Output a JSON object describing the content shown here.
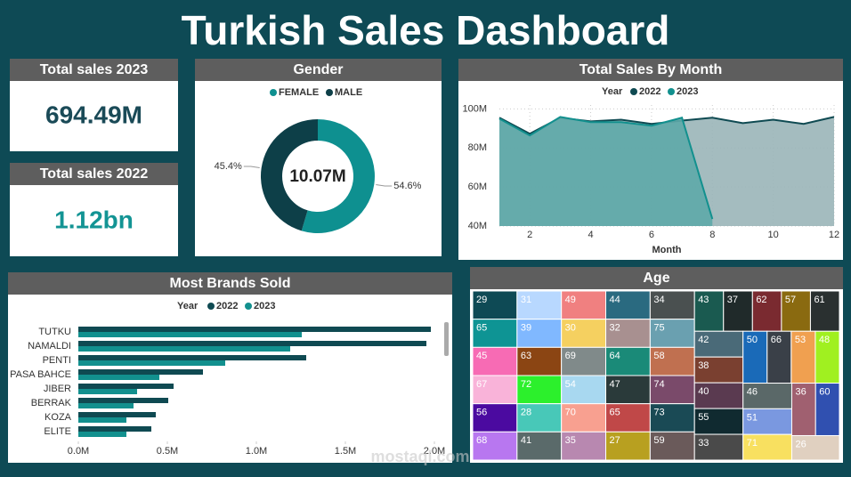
{
  "title": "Turkish Sales Dashboard",
  "cards": [
    {
      "title": "Total sales 2023",
      "value": "694.49M"
    },
    {
      "title": "Total sales 2022",
      "value": "1.12bn"
    }
  ],
  "watermark": "mostaql.com",
  "chart_data": [
    {
      "type": "donut",
      "title": "Gender",
      "categories": [
        "FEMALE",
        "MALE"
      ],
      "values": [
        54.6,
        45.4
      ],
      "value_labels": [
        "54.6%",
        "45.4%"
      ],
      "colors": [
        "#0e9090",
        "#0d3f48"
      ],
      "center_label": "10.07M",
      "legend": "top"
    },
    {
      "type": "area",
      "title": "Total Sales By Month",
      "legend_title": "Year",
      "x_label": "Month",
      "x": [
        1,
        2,
        3,
        4,
        5,
        6,
        7,
        8,
        9,
        10,
        11,
        12
      ],
      "series": [
        {
          "name": "2022",
          "color": "#0f4a52",
          "fill": "#9ab5b8",
          "values": [
            95.5,
            87.3,
            95.5,
            93.6,
            94.5,
            92.3,
            94,
            95.5,
            92.7,
            94.5,
            92.3,
            95.9
          ]
        },
        {
          "name": "2023",
          "color": "#12908e",
          "fill": "#5ea9a9",
          "values": [
            95,
            86.4,
            95.9,
            93.2,
            93.2,
            91.4,
            95.5,
            43.6,
            null,
            null,
            null,
            null
          ]
        }
      ],
      "xlim": [
        1,
        12
      ],
      "xticks": [
        2,
        4,
        6,
        8,
        10,
        12
      ],
      "ylim": [
        40,
        102
      ],
      "yticks": [
        {
          "value": 40,
          "label": "40M"
        },
        {
          "value": 60,
          "label": "60M"
        },
        {
          "value": 80,
          "label": "80M"
        },
        {
          "value": 100,
          "label": "100M"
        }
      ],
      "grid": true
    },
    {
      "type": "bar",
      "orientation": "horizontal",
      "title": "Most Brands Sold",
      "legend_title": "Year",
      "categories": [
        "TUTKU",
        "NAMALDI",
        "PENTI",
        "PASA BAHCE",
        "JIBER",
        "BERRAK",
        "KOZA",
        "ELITE"
      ],
      "series": [
        {
          "name": "2022",
          "color": "#0f4a52",
          "values": [
            1.98,
            1.955,
            1.28,
            0.7,
            0.535,
            0.505,
            0.435,
            0.41
          ]
        },
        {
          "name": "2023",
          "color": "#12908e",
          "values": [
            1.255,
            1.19,
            0.825,
            0.455,
            0.33,
            0.31,
            0.27,
            0.27
          ]
        }
      ],
      "xlim": [
        0,
        2.05
      ],
      "xticks": [
        {
          "value": 0,
          "label": "0.0M"
        },
        {
          "value": 0.5,
          "label": "0.5M"
        },
        {
          "value": 1,
          "label": "1.0M"
        },
        {
          "value": 1.5,
          "label": "1.5M"
        },
        {
          "value": 2,
          "label": "2.0M"
        }
      ]
    },
    {
      "type": "treemap",
      "title": "Age",
      "labels": [
        "29",
        "65",
        "45",
        "67",
        "56",
        "68",
        "31",
        "39",
        "63",
        "72",
        "28",
        "41",
        "49",
        "30",
        "69",
        "54",
        "70",
        "35",
        "44",
        "32",
        "64",
        "47",
        "65",
        "27",
        "34",
        "75",
        "58",
        "74",
        "73",
        "59",
        "43",
        "37",
        "62",
        "57",
        "61",
        "42",
        "38",
        "40",
        "55",
        "33",
        "50",
        "66",
        "53",
        "48",
        "46",
        "51",
        "71",
        "36",
        "60",
        "26"
      ],
      "values": [
        15,
        15,
        15,
        15,
        15,
        15,
        15,
        15,
        15,
        15,
        15,
        15,
        15,
        15,
        15,
        15,
        15,
        15,
        15,
        15,
        15,
        15,
        15,
        15,
        15,
        15,
        15,
        15,
        15,
        15,
        14,
        14,
        14,
        14,
        14,
        15,
        15,
        15,
        15,
        15,
        15,
        15,
        15,
        15,
        15,
        15,
        15,
        15,
        15,
        14
      ],
      "colors": [
        "#0e4a55",
        "#0e9494",
        "#f76bb4",
        "#f9b3d9",
        "#4b0aa0",
        "#b877f0",
        "#b8d8ff",
        "#80b8ff",
        "#8b4513",
        "#2cf02c",
        "#48c8b8",
        "#5a6a6a",
        "#f08080",
        "#f5d060",
        "#808a8a",
        "#a8d8f0",
        "#f8a090",
        "#b888b0",
        "#2a6a80",
        "#a89090",
        "#1a8a78",
        "#2a3a3a",
        "#c04848",
        "#b8a020",
        "#4a5050",
        "#6aa0b0",
        "#c07050",
        "#7a4a6a",
        "#1a4a55",
        "#6a5a5a",
        "#1a5a50",
        "#202a2a",
        "#7a2a30",
        "#8a6a10",
        "#2a3030",
        "#4a6a78",
        "#7a4030",
        "#5a3a50",
        "#102a30",
        "#4a4a4a",
        "#1a6ab8",
        "#3a4048",
        "#f0a050",
        "#a0f020",
        "#5a6868",
        "#7a98e0",
        "#f8e060",
        "#a06070",
        "#3050b0",
        "#e0d0c0"
      ]
    }
  ]
}
